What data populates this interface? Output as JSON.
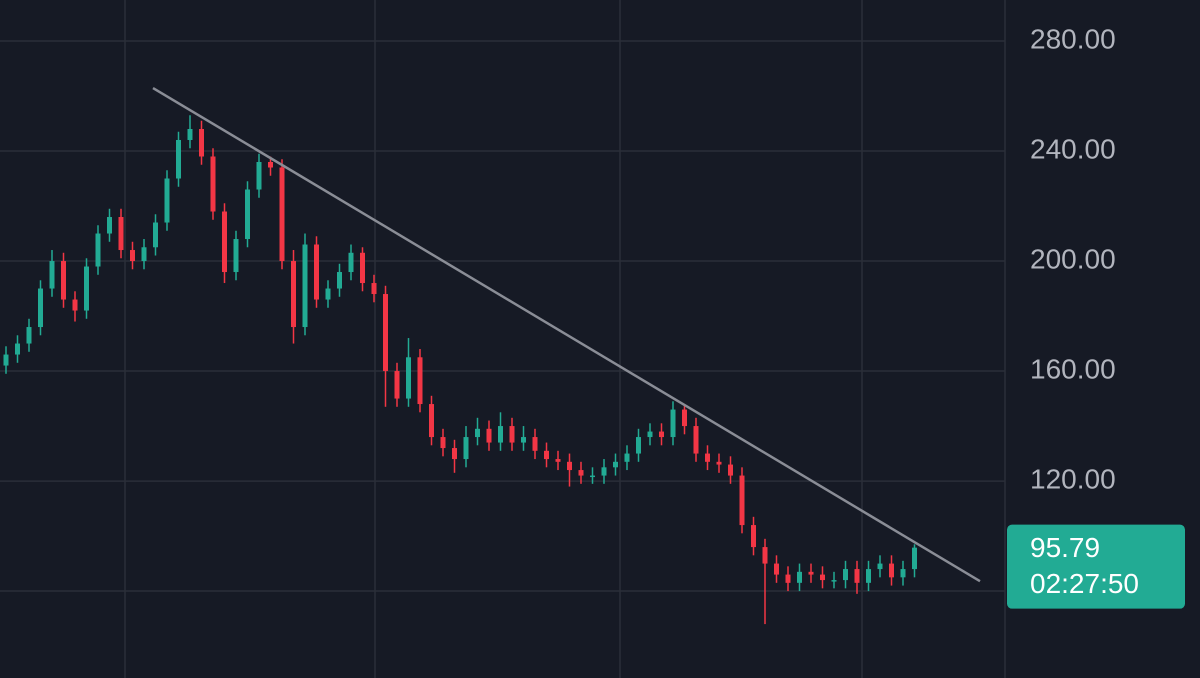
{
  "chart_data": {
    "type": "candlestick",
    "open": [
      162,
      166,
      170,
      176,
      190,
      200,
      186,
      182,
      198,
      210,
      216,
      204,
      200,
      205,
      214,
      230,
      244,
      248,
      238,
      218,
      196,
      208,
      226,
      236,
      234,
      200,
      176,
      206,
      186,
      190,
      196,
      203,
      192,
      188,
      160,
      150,
      165,
      148,
      136,
      132,
      128,
      136,
      139,
      134,
      140,
      134,
      136,
      131,
      128,
      127,
      124,
      122,
      122,
      125,
      127,
      130,
      136,
      138,
      136,
      146,
      140,
      130,
      127,
      126,
      122,
      104,
      96,
      90,
      86,
      83,
      87,
      86,
      84,
      84,
      88,
      83,
      88,
      90,
      85,
      88
    ],
    "high": [
      169,
      173,
      179,
      193,
      204,
      203,
      189,
      201,
      213,
      219,
      219,
      207,
      208,
      217,
      233,
      247,
      253,
      251,
      241,
      221,
      211,
      229,
      239,
      238,
      237,
      204,
      210,
      209,
      193,
      199,
      206,
      205,
      195,
      191,
      163,
      172,
      168,
      151,
      139,
      135,
      140,
      143,
      142,
      145,
      143,
      140,
      139,
      134,
      131,
      130,
      127,
      125,
      128,
      130,
      133,
      139,
      141,
      141,
      149,
      148,
      143,
      133,
      130,
      129,
      125,
      107,
      99,
      93,
      89,
      90,
      90,
      89,
      87,
      91,
      91,
      91,
      93,
      93,
      91,
      97
    ],
    "low": [
      159,
      163,
      167,
      173,
      187,
      183,
      178,
      179,
      195,
      207,
      201,
      197,
      197,
      202,
      211,
      227,
      241,
      235,
      215,
      192,
      193,
      205,
      223,
      231,
      197,
      170,
      173,
      183,
      183,
      187,
      193,
      189,
      185,
      147,
      147,
      147,
      145,
      133,
      129,
      123,
      125,
      133,
      131,
      131,
      131,
      131,
      128,
      125,
      124,
      118,
      119,
      119,
      119,
      122,
      124,
      127,
      133,
      133,
      133,
      137,
      127,
      124,
      123,
      119,
      101,
      93,
      68,
      83,
      80,
      80,
      83,
      81,
      81,
      81,
      79,
      80,
      85,
      82,
      82,
      85
    ],
    "close": [
      166,
      170,
      176,
      190,
      200,
      186,
      182,
      198,
      210,
      216,
      204,
      200,
      205,
      214,
      230,
      244,
      248,
      238,
      218,
      196,
      208,
      226,
      236,
      234,
      200,
      176,
      206,
      186,
      190,
      196,
      203,
      192,
      188,
      160,
      150,
      165,
      148,
      136,
      132,
      128,
      136,
      139,
      134,
      140,
      134,
      136,
      131,
      128,
      127,
      124,
      122,
      122,
      125,
      127,
      130,
      136,
      138,
      136,
      146,
      140,
      130,
      127,
      126,
      122,
      104,
      96,
      90,
      86,
      83,
      87,
      86,
      84,
      84,
      88,
      83,
      88,
      90,
      85,
      88,
      95.79
    ],
    "up_color": "#22ab94",
    "down_color": "#f23645",
    "ylim": [
      48.4,
      294.9
    ],
    "yticks": [
      {
        "value": 280,
        "label": "280.00"
      },
      {
        "value": 240,
        "label": "240.00"
      },
      {
        "value": 200,
        "label": "200.00"
      },
      {
        "value": 160,
        "label": "160.00"
      },
      {
        "value": 120,
        "label": "120.00"
      }
    ],
    "grid": true,
    "trendline": [
      262.9,
      83.6
    ],
    "countdown": "02:27:50"
  }
}
